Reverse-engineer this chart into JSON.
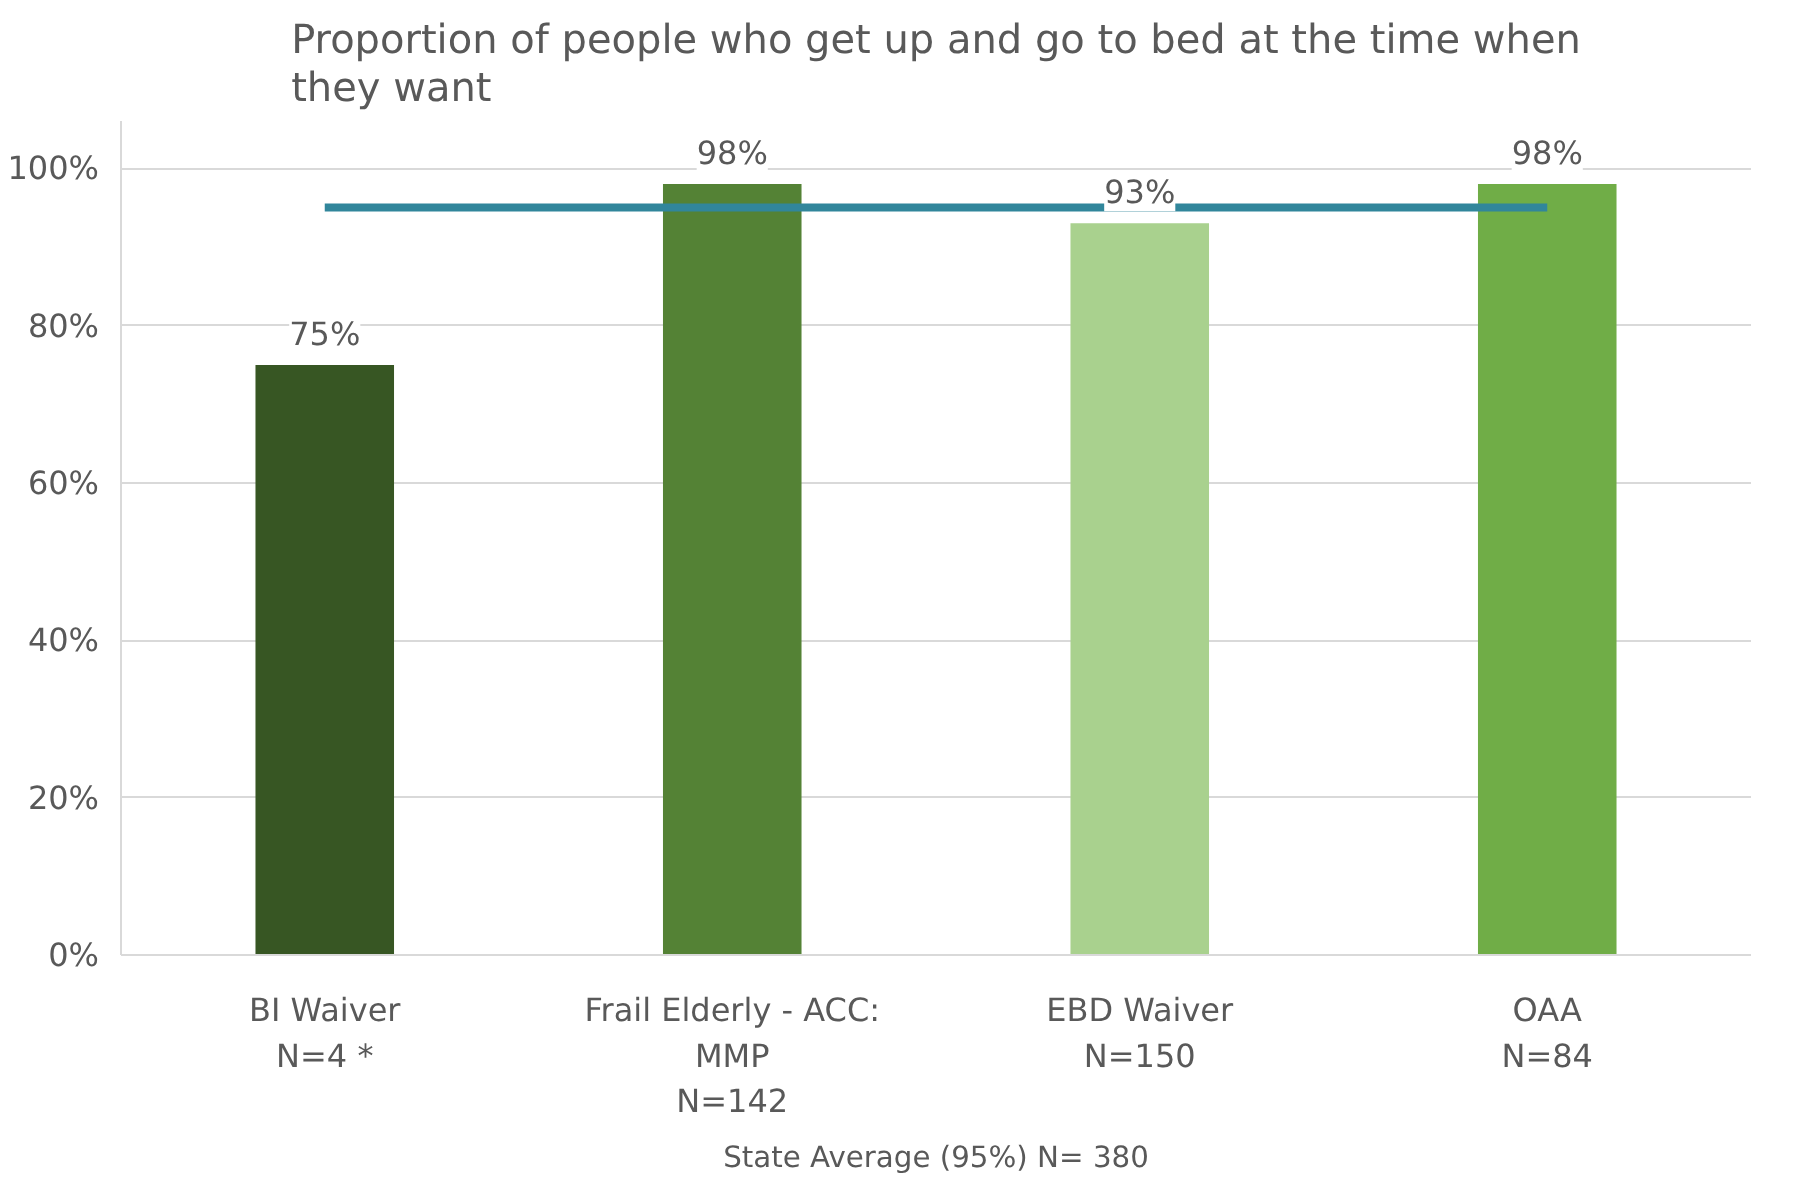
{
  "chart_data": {
    "type": "bar",
    "title": "Proportion of people who get up and go to bed at the time when they want",
    "categories": [
      "BI Waiver\nN=4 *",
      "Frail Elderly - ACC:\nMMP\nN=142",
      "EBD Waiver\nN=150",
      "OAA\nN=84"
    ],
    "values": [
      75,
      98,
      93,
      98
    ],
    "colors": [
      "#375623",
      "#548235",
      "#a9d18e",
      "#70ad47"
    ],
    "value_labels": [
      "75%",
      "98%",
      "93%",
      "98%"
    ],
    "ylim": [
      0,
      106
    ],
    "yticks": [
      {
        "value": 0,
        "label": "0%"
      },
      {
        "value": 20,
        "label": "20%"
      },
      {
        "value": 40,
        "label": "40%"
      },
      {
        "value": 60,
        "label": "60%"
      },
      {
        "value": 80,
        "label": "80%"
      },
      {
        "value": 100,
        "label": "100%"
      }
    ],
    "grid": "y",
    "ref_lines": [
      {
        "axis": "y",
        "value": 95,
        "color": "#31869b"
      }
    ],
    "annotations": [
      "State Average (95%) N= 380"
    ]
  }
}
